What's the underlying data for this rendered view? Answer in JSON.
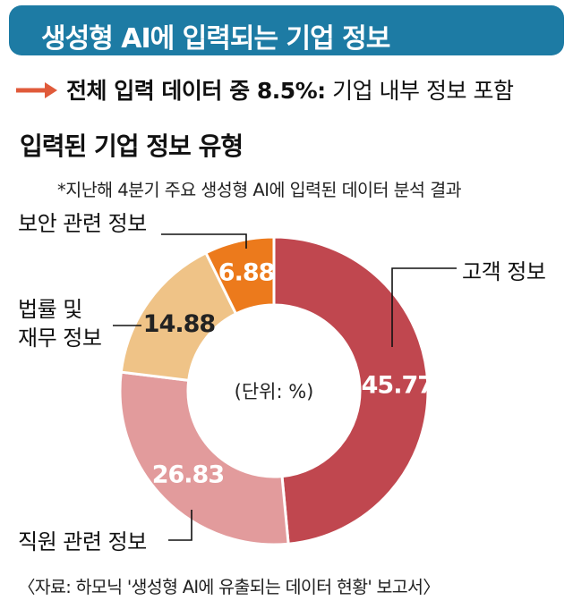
{
  "header": {
    "title": "생성형 AI에 입력되는 기업 정보"
  },
  "note": {
    "bold_text": "전체 입력 데이터 중 8.5%:",
    "rest_text": " 기업 내부 정보 포함",
    "arrow_color": "#e05a3a"
  },
  "subtitle": "입력된 기업 정보 유형",
  "footnote": "*지난해 4분기 주요 생성형 AI에 입력된 데이터 분석 결과",
  "source": "〈자료: 하모닉 '생성형 AI에 유출되는 데이터 현황' 보고서〉",
  "chart_data": {
    "type": "pie",
    "donut": true,
    "unit_label": "(단위: %)",
    "categories": [
      "고객 정보",
      "직원 관련 정보",
      "법률 및 재무 정보",
      "보안 관련 정보"
    ],
    "values": [
      45.77,
      26.83,
      14.88,
      6.88
    ],
    "value_labels": [
      "45.77",
      "26.83",
      "14.88",
      "6.88"
    ],
    "colors": [
      "#c0474f",
      "#e29b9c",
      "#efc387",
      "#ec7a1c"
    ],
    "value_text_colors": [
      "#ffffff",
      "#ffffff",
      "#222222",
      "#ffffff"
    ],
    "label_lines": [
      [
        "고객 정보"
      ],
      [
        "직원 관련 정보"
      ],
      [
        "법률 및",
        "재무 정보"
      ],
      [
        "보안 관련 정보"
      ]
    ]
  }
}
